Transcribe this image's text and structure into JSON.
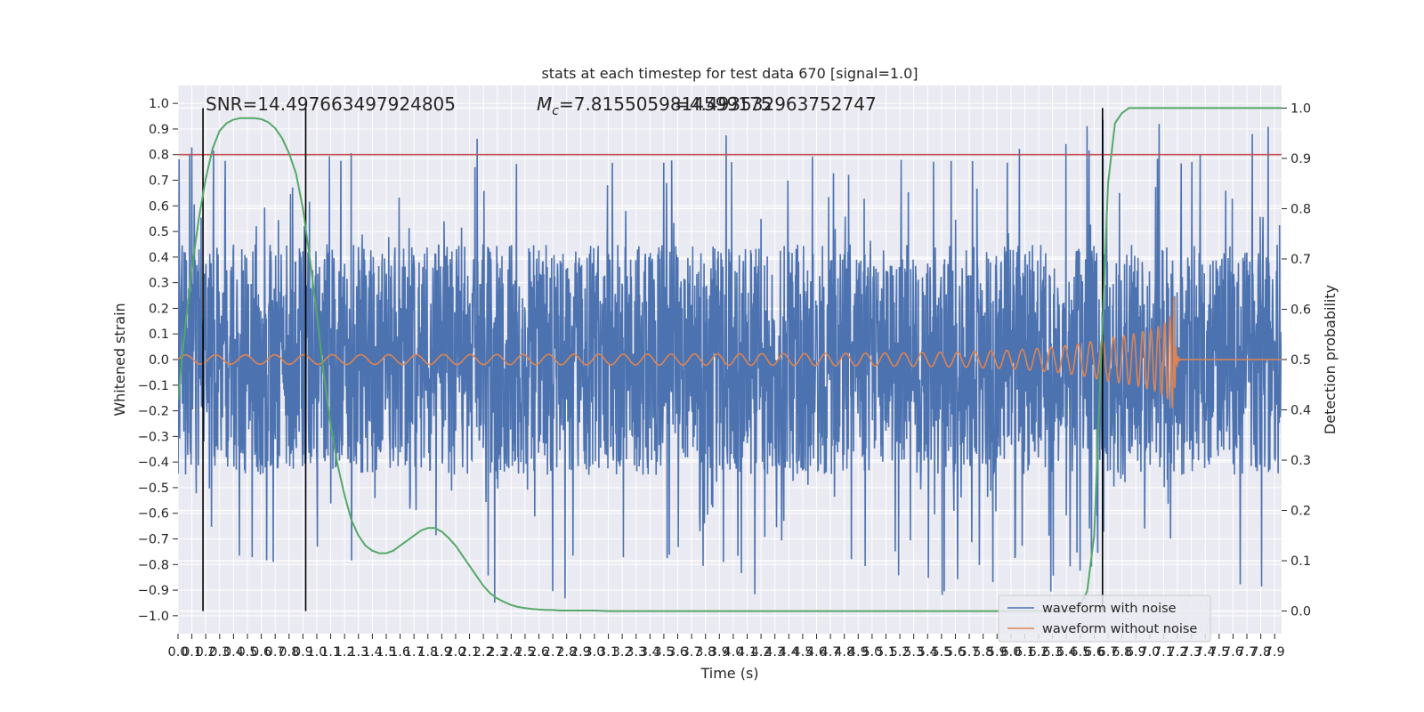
{
  "chart_data": {
    "type": "line",
    "title": "stats at each timestep for test data 670 [signal=1.0]",
    "xlabel": "Time (s)",
    "ylabel": "Whitened strain",
    "ylabel_right": "Detection probability",
    "xlim": [
      0.0,
      7.95
    ],
    "ylim": [
      -1.07,
      1.07
    ],
    "ylim_right": [
      -0.045,
      1.045
    ],
    "grid": true,
    "x_ticks": [
      0.0,
      0.1,
      0.2,
      0.3,
      0.4,
      0.5,
      0.6,
      0.7,
      0.8,
      0.9,
      1.0,
      1.1,
      1.2,
      1.3,
      1.4,
      1.5,
      1.6,
      1.7,
      1.8,
      1.9,
      2.0,
      2.1,
      2.2,
      2.3,
      2.4,
      2.5,
      2.6,
      2.7,
      2.8,
      2.9,
      3.0,
      3.1,
      3.2,
      3.3,
      3.4,
      3.5,
      3.6,
      3.7,
      3.8,
      3.9,
      4.0,
      4.1,
      4.2,
      4.3,
      4.4,
      4.5,
      4.6,
      4.7,
      4.8,
      4.9,
      5.0,
      5.1,
      5.2,
      5.3,
      5.4,
      5.5,
      5.6,
      5.7,
      5.8,
      5.9,
      6.0,
      6.1,
      6.2,
      6.3,
      6.4,
      6.5,
      6.6,
      6.7,
      6.8,
      6.9,
      7.0,
      7.1,
      7.2,
      7.3,
      7.4,
      7.5,
      7.6,
      7.7,
      7.8,
      7.9
    ],
    "y_ticks": [
      "1.0",
      "0.9",
      "0.8",
      "0.7",
      "0.6",
      "0.5",
      "0.4",
      "0.3",
      "0.2",
      "0.1",
      "0.0",
      "−0.1",
      "−0.2",
      "−0.3",
      "−0.4",
      "−0.5",
      "−0.6",
      "−0.7",
      "−0.8",
      "−0.9",
      "−1.0"
    ],
    "y_ticks_right": [
      "1.0",
      "0.9",
      "0.8",
      "0.7",
      "0.6",
      "0.5",
      "0.4",
      "0.3",
      "0.2",
      "0.1",
      "0.0"
    ],
    "annotations": {
      "snr": "SNR=14.497663497924805",
      "mc_prefix": "M",
      "mc_sub": "c",
      "mc_value": "=7.8155059814599175",
      "mc_overlap": "=4.493532963752747"
    },
    "threshold_line": {
      "y": 0.8,
      "color": "#c44e52"
    },
    "vertical_lines": [
      0.18,
      0.92,
      6.66
    ],
    "series": [
      {
        "name": "waveform with noise",
        "color": "#4c72b0",
        "description": "whitened strain, noise band roughly ±0.45 with spikes up to ±0.95"
      },
      {
        "name": "waveform without noise",
        "color": "#dd8452",
        "description": "chirp signal, amplitude ~0.02 growing to ~0.4 before merger at t≈7.17 s, then ringdown to 0"
      },
      {
        "name": "detection probability",
        "axis": "right",
        "color": "#55a868",
        "x": [
          0.0,
          0.05,
          0.1,
          0.15,
          0.2,
          0.25,
          0.3,
          0.35,
          0.4,
          0.45,
          0.5,
          0.55,
          0.6,
          0.65,
          0.7,
          0.75,
          0.8,
          0.85,
          0.9,
          0.95,
          1.0,
          1.05,
          1.1,
          1.15,
          1.2,
          1.25,
          1.3,
          1.35,
          1.4,
          1.45,
          1.5,
          1.55,
          1.6,
          1.65,
          1.7,
          1.75,
          1.8,
          1.85,
          1.9,
          1.95,
          2.0,
          2.05,
          2.1,
          2.15,
          2.2,
          2.25,
          2.3,
          2.35,
          2.4,
          2.45,
          2.5,
          2.55,
          2.6,
          2.65,
          2.7,
          2.75,
          2.8,
          2.85,
          2.9,
          3.0,
          3.1,
          3.2,
          3.4,
          3.6,
          4.0,
          5.0,
          6.0,
          6.3,
          6.4,
          6.45,
          6.5,
          6.55,
          6.6,
          6.65,
          6.7,
          6.75,
          6.8,
          6.85,
          6.9,
          7.0,
          7.5,
          7.95
        ],
        "y": [
          0.42,
          0.56,
          0.68,
          0.78,
          0.86,
          0.92,
          0.955,
          0.97,
          0.977,
          0.98,
          0.98,
          0.98,
          0.978,
          0.972,
          0.96,
          0.94,
          0.91,
          0.87,
          0.8,
          0.7,
          0.59,
          0.47,
          0.37,
          0.29,
          0.23,
          0.18,
          0.15,
          0.13,
          0.12,
          0.115,
          0.115,
          0.12,
          0.13,
          0.14,
          0.15,
          0.16,
          0.165,
          0.165,
          0.158,
          0.145,
          0.13,
          0.11,
          0.09,
          0.07,
          0.05,
          0.035,
          0.025,
          0.018,
          0.012,
          0.008,
          0.006,
          0.004,
          0.003,
          0.002,
          0.002,
          0.001,
          0.001,
          0.001,
          0.001,
          0.001,
          0.0,
          0.0,
          0.0,
          0.0,
          0.0,
          0.0,
          0.0,
          0.0,
          0.0,
          0.003,
          0.01,
          0.04,
          0.15,
          0.5,
          0.85,
          0.97,
          0.99,
          1.0,
          1.0,
          1.0,
          1.0,
          1.0
        ]
      }
    ],
    "legend": {
      "placement": "bottom-right",
      "entries": [
        "waveform with noise",
        "waveform without noise"
      ]
    }
  }
}
